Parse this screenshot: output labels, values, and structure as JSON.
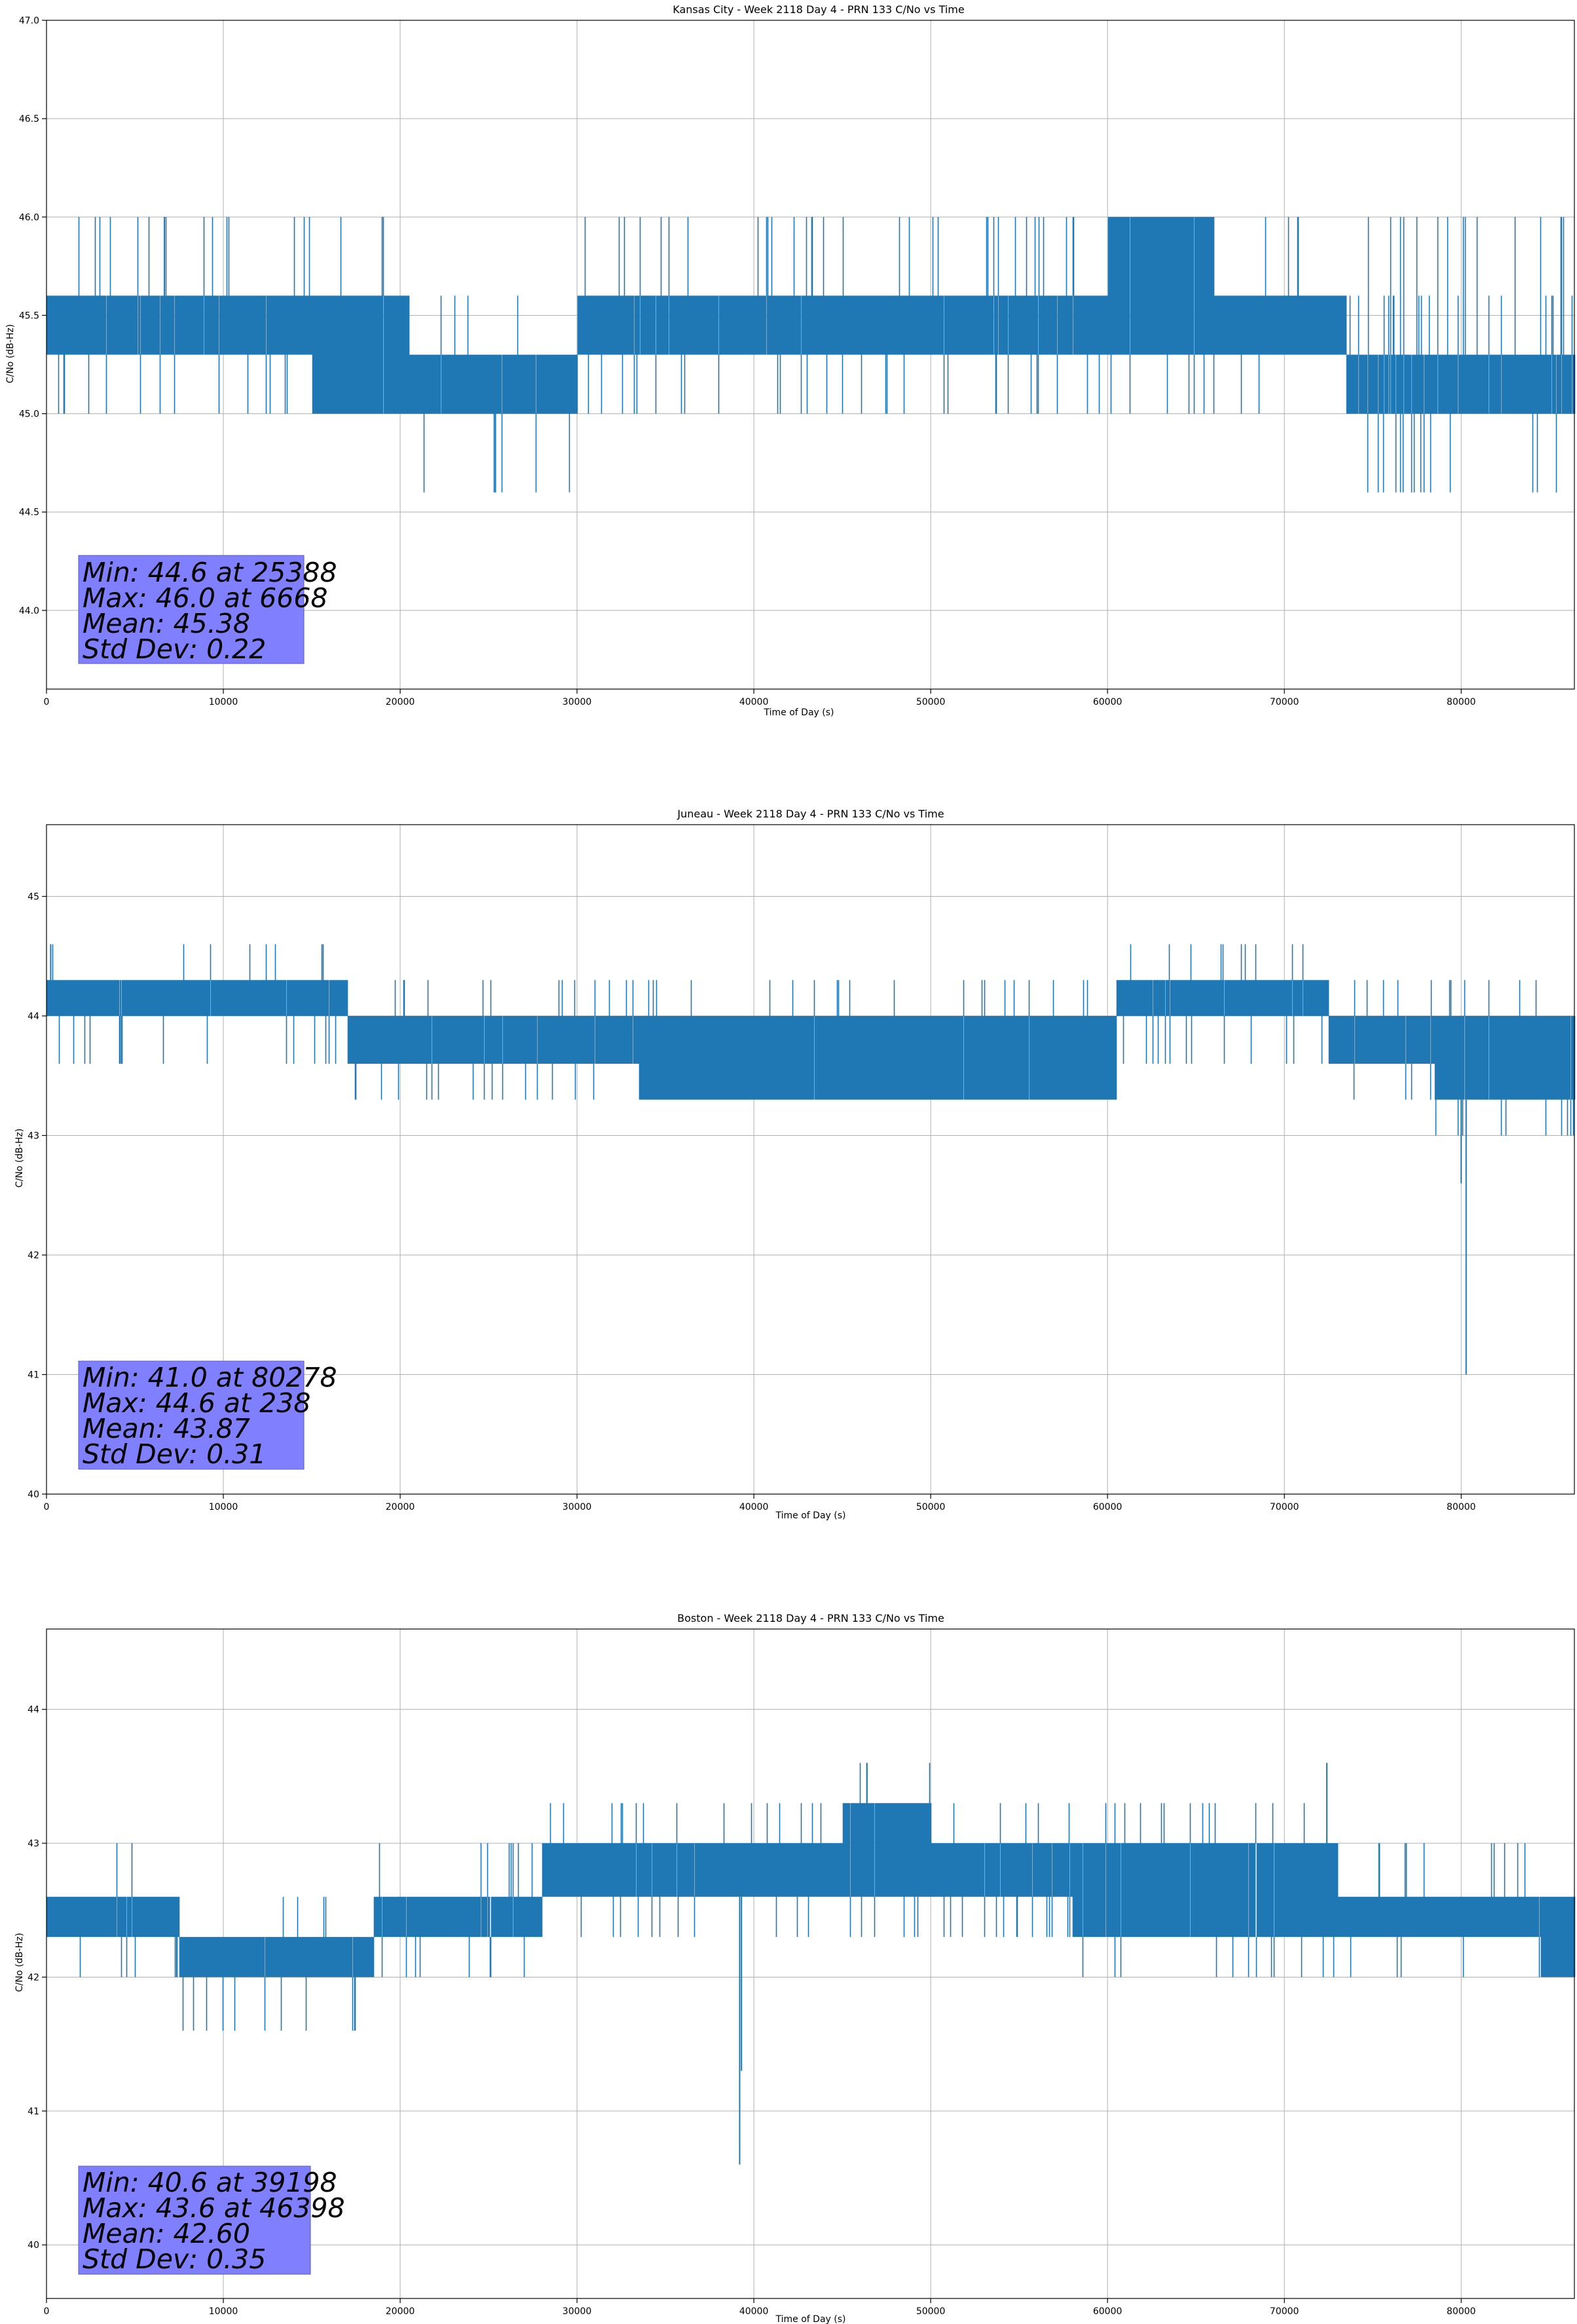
{
  "chart_data": [
    {
      "type": "line",
      "title": "Kansas City - Week 2118 Day 4 - PRN 133 C/No vs Time",
      "xlabel": "Time of Day (s)",
      "ylabel": "C/No (dB-Hz)",
      "xlim": [
        0,
        86400
      ],
      "ylim": [
        43.6,
        47.0
      ],
      "grid": true,
      "color": "#1f77b4",
      "xticks": [
        0,
        10000,
        20000,
        30000,
        40000,
        50000,
        60000,
        70000,
        80000
      ],
      "xtick_labels": [
        "0",
        "10000",
        "20000",
        "30000",
        "40000",
        "50000",
        "60000",
        "70000",
        "80000"
      ],
      "yticks": [
        44.0,
        44.5,
        45.0,
        45.5,
        46.0,
        46.5,
        47.0
      ],
      "ytick_labels": [
        "44.0",
        "44.5",
        "45.0",
        "45.5",
        "46.0",
        "46.5",
        "47.0"
      ],
      "segments": [
        {
          "x": [
            0,
            7000
          ],
          "base": [
            45.3,
            45.6
          ],
          "up": [
            46.0
          ],
          "down": [
            45.0
          ],
          "rate": 0.55,
          "rare": 0.03
        },
        {
          "x": [
            7000,
            15000
          ],
          "base": [
            45.3,
            45.6
          ],
          "up": [
            46.0
          ],
          "down": [
            45.0
          ],
          "rate": 0.6,
          "rare": 0.03
        },
        {
          "x": [
            15000,
            20500
          ],
          "base": [
            45.0,
            45.6
          ],
          "up": [
            46.0
          ],
          "down": [
            45.0
          ],
          "rate": 0.4,
          "rare": 0.02
        },
        {
          "x": [
            20500,
            30000
          ],
          "base": [
            45.0,
            45.3
          ],
          "up": [
            45.6
          ],
          "down": [
            44.6
          ],
          "rate": 0.5,
          "rare": 0.02
        },
        {
          "x": [
            30000,
            42000
          ],
          "base": [
            45.3,
            45.6
          ],
          "up": [
            46.0
          ],
          "down": [
            45.0
          ],
          "rate": 0.55,
          "rare": 0.03
        },
        {
          "x": [
            42000,
            60000
          ],
          "base": [
            45.3,
            45.6
          ],
          "up": [
            46.0
          ],
          "down": [
            45.0
          ],
          "rate": 0.6,
          "rare": 0.04
        },
        {
          "x": [
            60000,
            66000
          ],
          "base": [
            45.3,
            46.0
          ],
          "up": [
            46.0
          ],
          "down": [
            45.0
          ],
          "rate": 0.6,
          "rare": 0.03
        },
        {
          "x": [
            66000,
            73500
          ],
          "base": [
            45.3,
            45.6
          ],
          "up": [
            46.0
          ],
          "down": [
            45.0
          ],
          "rate": 0.55,
          "rare": 0.03
        },
        {
          "x": [
            73500,
            86400
          ],
          "base": [
            45.0,
            45.3
          ],
          "up": [
            45.6,
            46.0
          ],
          "down": [
            44.6
          ],
          "rate": 0.55,
          "rare": 0.06
        }
      ],
      "spikes": [
        [
          25388,
          44.6
        ],
        [
          6668,
          46.0
        ]
      ],
      "stats": {
        "min": "Min: 44.6 at 25388",
        "max": "Max: 46.0 at 6668",
        "mean": "Mean: 45.38",
        "std": "Std Dev: 0.22"
      }
    },
    {
      "type": "line",
      "title": "Juneau - Week 2118 Day 4 - PRN 133 C/No vs Time",
      "xlabel": "Time of Day (s)",
      "ylabel": "C/No (dB-Hz)",
      "xlim": [
        0,
        86400
      ],
      "ylim": [
        40.0,
        45.6
      ],
      "grid": true,
      "color": "#1f77b4",
      "xticks": [
        0,
        10000,
        20000,
        30000,
        40000,
        50000,
        60000,
        70000,
        80000
      ],
      "xtick_labels": [
        "0",
        "10000",
        "20000",
        "30000",
        "40000",
        "50000",
        "60000",
        "70000",
        "80000"
      ],
      "yticks": [
        40,
        41,
        42,
        43,
        44,
        45
      ],
      "ytick_labels": [
        "40",
        "41",
        "42",
        "43",
        "44",
        "45"
      ],
      "segments": [
        {
          "x": [
            0,
            11500
          ],
          "base": [
            44.0,
            44.3
          ],
          "up": [
            44.6
          ],
          "down": [
            43.6
          ],
          "rate": 0.55,
          "rare": 0.03
        },
        {
          "x": [
            11500,
            17000
          ],
          "base": [
            44.0,
            44.3
          ],
          "up": [
            44.6
          ],
          "down": [
            43.6
          ],
          "rate": 0.35,
          "rare": 0.03
        },
        {
          "x": [
            17000,
            33500
          ],
          "base": [
            43.6,
            44.0
          ],
          "up": [
            44.3
          ],
          "down": [
            43.3
          ],
          "rate": 0.55,
          "rare": 0.03
        },
        {
          "x": [
            33500,
            60500
          ],
          "base": [
            43.3,
            44.0
          ],
          "up": [
            44.3
          ],
          "down": [
            43.3
          ],
          "rate": 0.5,
          "rare": 0.03
        },
        {
          "x": [
            60500,
            72500
          ],
          "base": [
            44.0,
            44.3
          ],
          "up": [
            44.6
          ],
          "down": [
            43.6
          ],
          "rate": 0.6,
          "rare": 0.03
        },
        {
          "x": [
            72500,
            78500
          ],
          "base": [
            43.6,
            44.0
          ],
          "up": [
            44.3
          ],
          "down": [
            43.3
          ],
          "rate": 0.55,
          "rare": 0.03
        },
        {
          "x": [
            78500,
            86400
          ],
          "base": [
            43.3,
            44.0
          ],
          "up": [
            44.3
          ],
          "down": [
            43.0
          ],
          "rate": 0.55,
          "rare": 0.04
        }
      ],
      "spikes": [
        [
          80278,
          41.0
        ],
        [
          80000,
          42.6
        ],
        [
          238,
          44.6
        ]
      ],
      "stats": {
        "min": "Min: 41.0 at 80278",
        "max": "Max: 44.6 at 238",
        "mean": "Mean: 43.87",
        "std": "Std Dev: 0.31"
      }
    },
    {
      "type": "line",
      "title": "Boston - Week 2118 Day 4 - PRN 133 C/No vs Time",
      "xlabel": "Time of Day (s)",
      "ylabel": "C/No (dB-Hz)",
      "xlim": [
        0,
        86400
      ],
      "ylim": [
        39.6,
        44.6
      ],
      "grid": true,
      "color": "#1f77b4",
      "xticks": [
        0,
        10000,
        20000,
        30000,
        40000,
        50000,
        60000,
        70000,
        80000
      ],
      "xtick_labels": [
        "0",
        "10000",
        "20000",
        "30000",
        "40000",
        "50000",
        "60000",
        "70000",
        "80000"
      ],
      "yticks": [
        40,
        41,
        42,
        43,
        44
      ],
      "ytick_labels": [
        "40",
        "41",
        "42",
        "43",
        "44"
      ],
      "segments": [
        {
          "x": [
            0,
            7500
          ],
          "base": [
            42.3,
            42.6
          ],
          "up": [
            43.0
          ],
          "down": [
            42.0
          ],
          "rate": 0.5,
          "rare": 0.03
        },
        {
          "x": [
            7500,
            18500
          ],
          "base": [
            42.0,
            42.3
          ],
          "up": [
            42.6
          ],
          "down": [
            41.6
          ],
          "rate": 0.5,
          "rare": 0.03
        },
        {
          "x": [
            18500,
            28000
          ],
          "base": [
            42.3,
            42.6
          ],
          "up": [
            43.0
          ],
          "down": [
            42.0
          ],
          "rate": 0.45,
          "rare": 0.03
        },
        {
          "x": [
            28000,
            45000
          ],
          "base": [
            42.6,
            43.0
          ],
          "up": [
            43.3
          ],
          "down": [
            42.3
          ],
          "rate": 0.6,
          "rare": 0.03
        },
        {
          "x": [
            45000,
            50000
          ],
          "base": [
            42.6,
            43.3
          ],
          "up": [
            43.6
          ],
          "down": [
            42.3
          ],
          "rate": 0.6,
          "rare": 0.03
        },
        {
          "x": [
            50000,
            58000
          ],
          "base": [
            42.6,
            43.0
          ],
          "up": [
            43.3
          ],
          "down": [
            42.3
          ],
          "rate": 0.55,
          "rare": 0.03
        },
        {
          "x": [
            58000,
            73000
          ],
          "base": [
            42.3,
            43.0
          ],
          "up": [
            43.3
          ],
          "down": [
            42.0
          ],
          "rate": 0.55,
          "rare": 0.03
        },
        {
          "x": [
            73000,
            84500
          ],
          "base": [
            42.3,
            42.6
          ],
          "up": [
            43.0
          ],
          "down": [
            42.0
          ],
          "rate": 0.5,
          "rare": 0.03
        },
        {
          "x": [
            84500,
            86400
          ],
          "base": [
            42.0,
            42.6
          ],
          "up": [
            42.6
          ],
          "down": [
            42.0
          ],
          "rate": 0.5,
          "rare": 0.03
        }
      ],
      "spikes": [
        [
          39198,
          40.6
        ],
        [
          39300,
          41.3
        ],
        [
          46398,
          43.6
        ],
        [
          72400,
          43.6
        ]
      ],
      "stats": {
        "min": "Min: 40.6 at 39198",
        "max": "Max: 43.6 at 46398",
        "mean": "Mean: 42.60",
        "std": "Std Dev: 0.35"
      }
    }
  ]
}
